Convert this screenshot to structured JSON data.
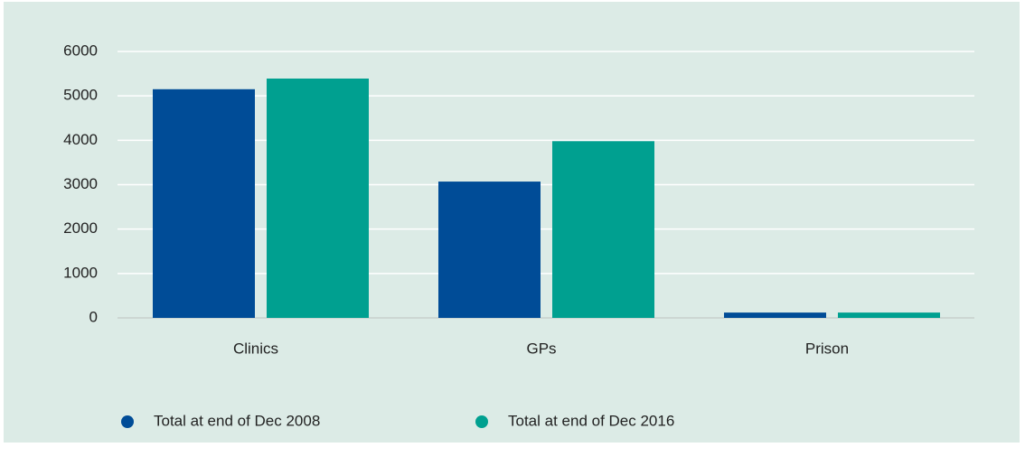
{
  "chart_data": {
    "type": "bar",
    "categories": [
      "Clinics",
      "GPs",
      "Prison"
    ],
    "series": [
      {
        "name": "Total at end of Dec 2008",
        "color": "#004c97",
        "values": [
          5150,
          3070,
          120
        ]
      },
      {
        "name": "Total at end of Dec 2016",
        "color": "#00a090",
        "values": [
          5390,
          3980,
          120
        ]
      }
    ],
    "ylim": [
      0,
      6000
    ],
    "yticks": [
      0,
      1000,
      2000,
      3000,
      4000,
      5000,
      6000
    ],
    "grid": true,
    "legend": "bottom"
  }
}
